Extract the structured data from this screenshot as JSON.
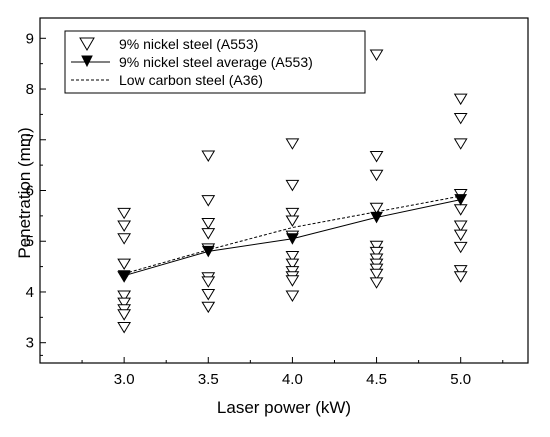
{
  "chart_data": {
    "type": "scatter",
    "xlabel": "Laser power (kW)",
    "ylabel": "Penetration (mm)",
    "xlim": [
      2.5,
      5.4
    ],
    "ylim": [
      2.6,
      9.4
    ],
    "xticks": [
      "3.0",
      "3.5",
      "4.0",
      "4.5",
      "5.0"
    ],
    "yticks": [
      "3",
      "4",
      "5",
      "6",
      "7",
      "8",
      "9"
    ],
    "legend_position": "top-left",
    "series": [
      {
        "name": "9% nickel steel (A553)",
        "style": "open-triangle-down markers",
        "points": [
          [
            3.0,
            5.55
          ],
          [
            3.0,
            5.3
          ],
          [
            3.0,
            5.05
          ],
          [
            3.0,
            4.55
          ],
          [
            3.0,
            4.3
          ],
          [
            3.0,
            3.92
          ],
          [
            3.0,
            3.78
          ],
          [
            3.0,
            3.65
          ],
          [
            3.0,
            3.55
          ],
          [
            3.0,
            3.3
          ],
          [
            3.5,
            6.68
          ],
          [
            3.5,
            5.8
          ],
          [
            3.5,
            5.35
          ],
          [
            3.5,
            5.15
          ],
          [
            3.5,
            4.85
          ],
          [
            3.5,
            4.28
          ],
          [
            3.5,
            4.2
          ],
          [
            3.5,
            3.95
          ],
          [
            3.5,
            3.7
          ],
          [
            4.0,
            6.92
          ],
          [
            4.0,
            6.1
          ],
          [
            4.0,
            5.55
          ],
          [
            4.0,
            5.4
          ],
          [
            4.0,
            5.1
          ],
          [
            4.0,
            4.7
          ],
          [
            4.0,
            4.55
          ],
          [
            4.0,
            4.4
          ],
          [
            4.0,
            4.3
          ],
          [
            4.0,
            4.22
          ],
          [
            4.0,
            3.92
          ],
          [
            4.5,
            8.67
          ],
          [
            4.5,
            6.67
          ],
          [
            4.5,
            6.3
          ],
          [
            4.5,
            5.65
          ],
          [
            4.5,
            4.9
          ],
          [
            4.5,
            4.78
          ],
          [
            4.5,
            4.65
          ],
          [
            4.5,
            4.55
          ],
          [
            4.5,
            4.45
          ],
          [
            4.5,
            4.35
          ],
          [
            4.5,
            4.18
          ],
          [
            5.0,
            7.8
          ],
          [
            5.0,
            7.42
          ],
          [
            5.0,
            6.92
          ],
          [
            5.0,
            5.92
          ],
          [
            5.0,
            5.62
          ],
          [
            5.0,
            5.3
          ],
          [
            5.0,
            5.12
          ],
          [
            5.0,
            4.88
          ],
          [
            5.0,
            4.42
          ],
          [
            5.0,
            4.3
          ]
        ]
      },
      {
        "name": "9% nickel steel average (A553)",
        "style": "solid line with filled-triangle-down markers",
        "x": [
          3.0,
          3.5,
          4.0,
          4.5,
          5.0
        ],
        "y": [
          4.32,
          4.8,
          5.05,
          5.47,
          5.82
        ]
      },
      {
        "name": "Low carbon steel (A36)",
        "style": "dashed line",
        "x": [
          3.0,
          3.5,
          4.0,
          4.5,
          5.0
        ],
        "y": [
          4.36,
          4.83,
          5.27,
          5.58,
          5.89
        ]
      }
    ]
  }
}
